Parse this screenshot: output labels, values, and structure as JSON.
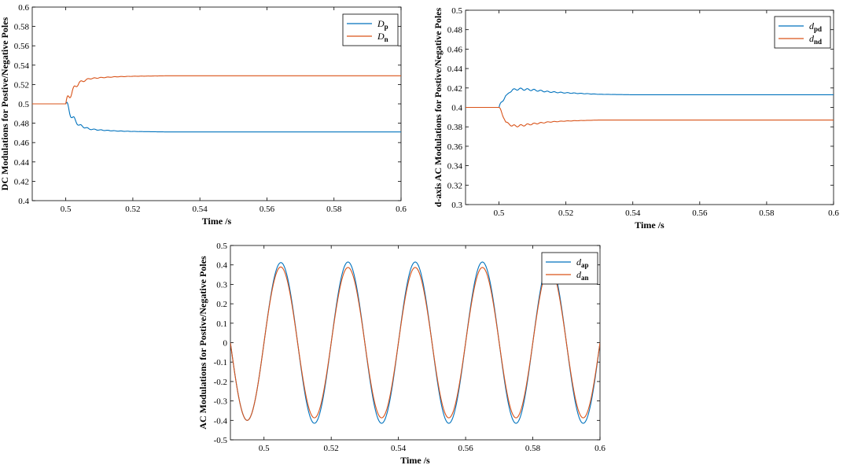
{
  "colors": {
    "blue": "#0072bd",
    "orange": "#d95319"
  },
  "chart_data": [
    {
      "type": "line",
      "id": "dc",
      "xlabel": "Time /s",
      "ylabel": "DC Modulations for Postive/Negative Poles",
      "xlim": [
        0.49,
        0.6
      ],
      "ylim": [
        0.4,
        0.6
      ],
      "xticks": [
        0.5,
        0.52,
        0.54,
        0.56,
        0.58,
        0.6
      ],
      "yticks": [
        0.4,
        0.42,
        0.44,
        0.46,
        0.48,
        0.5,
        0.52,
        0.54,
        0.56,
        0.58,
        0.6
      ],
      "legend_position": "top-right",
      "series": [
        {
          "name": "D",
          "sub": "p",
          "color": "#0072bd",
          "x": [
            0.49,
            0.5,
            0.502,
            0.504,
            0.507,
            0.51,
            0.515,
            0.52,
            0.53,
            0.54,
            0.55,
            0.6
          ],
          "values": [
            0.5,
            0.5,
            0.486,
            0.478,
            0.474,
            0.473,
            0.472,
            0.4715,
            0.471,
            0.471,
            0.471,
            0.471
          ]
        },
        {
          "name": "D",
          "sub": "n",
          "color": "#d95319",
          "x": [
            0.49,
            0.5,
            0.502,
            0.504,
            0.507,
            0.51,
            0.515,
            0.52,
            0.53,
            0.54,
            0.55,
            0.6
          ],
          "values": [
            0.5,
            0.5,
            0.514,
            0.522,
            0.526,
            0.527,
            0.528,
            0.5285,
            0.529,
            0.529,
            0.529,
            0.529
          ]
        }
      ]
    },
    {
      "type": "line",
      "id": "daxis",
      "xlabel": "Time /s",
      "ylabel": "d-axis AC Modulations for Postive/Negative Poles",
      "xlim": [
        0.49,
        0.6
      ],
      "ylim": [
        0.3,
        0.5
      ],
      "xticks": [
        0.5,
        0.52,
        0.54,
        0.56,
        0.58,
        0.6
      ],
      "yticks": [
        0.3,
        0.32,
        0.34,
        0.36,
        0.38,
        0.4,
        0.42,
        0.44,
        0.46,
        0.48,
        0.5
      ],
      "legend_position": "top-right",
      "series": [
        {
          "name": "d",
          "sub": "pd",
          "color": "#0072bd",
          "x": [
            0.49,
            0.5,
            0.502,
            0.504,
            0.506,
            0.51,
            0.515,
            0.52,
            0.53,
            0.54,
            0.6
          ],
          "values": [
            0.4,
            0.4,
            0.412,
            0.418,
            0.419,
            0.418,
            0.416,
            0.415,
            0.4135,
            0.413,
            0.413
          ]
        },
        {
          "name": "d",
          "sub": "nd",
          "color": "#d95319",
          "x": [
            0.49,
            0.5,
            0.502,
            0.504,
            0.506,
            0.51,
            0.515,
            0.52,
            0.53,
            0.54,
            0.6
          ],
          "values": [
            0.4,
            0.4,
            0.385,
            0.381,
            0.381,
            0.383,
            0.385,
            0.386,
            0.387,
            0.387,
            0.387
          ]
        }
      ]
    },
    {
      "type": "line",
      "id": "ac",
      "xlabel": "Time /s",
      "ylabel": "AC Modulations for Postive/Negative Poles",
      "xlim": [
        0.49,
        0.6
      ],
      "ylim": [
        -0.5,
        0.5
      ],
      "xticks": [
        0.5,
        0.52,
        0.54,
        0.56,
        0.58,
        0.6
      ],
      "yticks": [
        -0.5,
        -0.4,
        -0.3,
        -0.2,
        -0.1,
        0,
        0.1,
        0.2,
        0.3,
        0.4,
        0.5
      ],
      "legend_position": "top-right",
      "frequency_hz": 50,
      "series": [
        {
          "name": "d",
          "sub": "ap",
          "color": "#0072bd",
          "amplitude_before": 0.4,
          "amplitude_after": 0.415
        },
        {
          "name": "d",
          "sub": "an",
          "color": "#d95319",
          "amplitude_before": 0.4,
          "amplitude_after": 0.387
        }
      ]
    }
  ]
}
